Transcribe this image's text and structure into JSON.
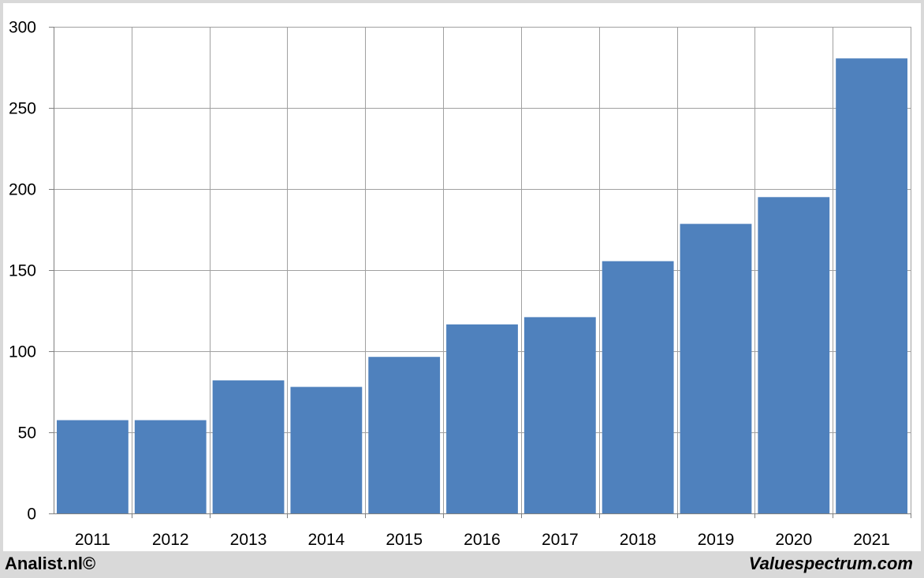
{
  "footer": {
    "left_credit": "Analist.nl©",
    "right_credit": "Valuespectrum.com"
  },
  "colors": {
    "bar": "#4f81bd",
    "grid": "#a0a0a0",
    "axis": "#808080",
    "background": "#ffffff",
    "frame": "#d9d9d9"
  },
  "chart_data": {
    "type": "bar",
    "categories": [
      "2011",
      "2012",
      "2013",
      "2014",
      "2015",
      "2016",
      "2017",
      "2018",
      "2019",
      "2020",
      "2021"
    ],
    "values": [
      57.5,
      57.5,
      82,
      78,
      96.5,
      116.5,
      121,
      155.5,
      178.5,
      195,
      280.5
    ],
    "title": "",
    "xlabel": "",
    "ylabel": "",
    "ylim": [
      0,
      300
    ],
    "yticks": [
      0,
      50,
      100,
      150,
      200,
      250,
      300
    ],
    "grid": true,
    "legend": "none"
  }
}
